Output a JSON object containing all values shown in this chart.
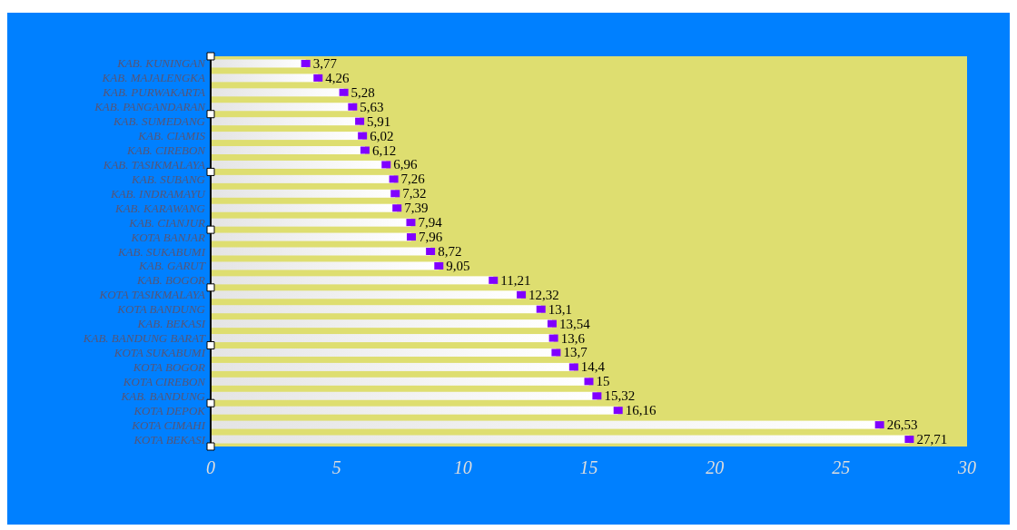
{
  "chart_data": {
    "type": "bar",
    "orientation": "horizontal",
    "categories": [
      "KAB. KUNINGAN",
      "KAB. MAJALENGKA",
      "KAB. PURWAKARTA",
      "KAB. PANGANDARAN",
      "KAB. SUMEDANG",
      "KAB. CIAMIS",
      "KAB. CIREBON",
      "KAB. TASIKMALAYA",
      "KAB. SUBANG",
      "KAB. INDRAMAYU",
      "KAB. KARAWANG",
      "KAB. CIANJUR",
      "KOTA BANJAR",
      "KAB. SUKABUMI",
      "KAB. GARUT",
      "KAB. BOGOR",
      "KOTA TASIKMALAYA",
      "KOTA BANDUNG",
      "KAB. BEKASI",
      "KAB. BANDUNG BARAT",
      "KOTA SUKABUMI",
      "KOTA BOGOR",
      "KOTA CIREBON",
      "KAB. BANDUNG",
      "KOTA DEPOK",
      "KOTA CIMAHI",
      "KOTA BEKASI"
    ],
    "series": [
      {
        "color": "#ffffff",
        "values": [
          3.77,
          4.26,
          5.28,
          5.63,
          5.91,
          6.02,
          6.12,
          6.96,
          7.26,
          7.32,
          7.39,
          7.94,
          7.96,
          8.72,
          9.05,
          11.21,
          12.32,
          13.1,
          13.54,
          13.6,
          13.7,
          14.4,
          15,
          15.32,
          16.16,
          26.53,
          27.71
        ],
        "value_labels": [
          "3,77",
          "4,26",
          "5,28",
          "5,63",
          "5,91",
          "6,02",
          "6,12",
          "6,96",
          "7,26",
          "7,32",
          "7,39",
          "7,94",
          "7,96",
          "8,72",
          "9,05",
          "11,21",
          "12,32",
          "13,1",
          "13,54",
          "13,6",
          "13,7",
          "14,4",
          "15",
          "15,32",
          "16,16",
          "26,53",
          "27,71"
        ]
      },
      {
        "type": "scatter",
        "color": "#8000ff",
        "marker": "square",
        "x": [
          "KAB. KUNINGAN",
          "KAB. MAJALENGKA",
          "KAB. PURWAKARTA",
          "KAB. PANGANDARAN",
          "KAB. SUMEDANG",
          "KAB. CIAMIS",
          "KAB. CIREBON",
          "KAB. TASIKMALAYA",
          "KAB. SUBANG",
          "KAB. INDRAMAYU",
          "KAB. KARAWANG",
          "KAB. CIANJUR",
          "KOTA BANJAR",
          "KAB. SUKABUMI",
          "KAB. GARUT",
          "KAB. BOGOR",
          "KOTA TASIKMALAYA",
          "KOTA BANDUNG",
          "KAB. BEKASI",
          "KAB. BANDUNG BARAT",
          "KOTA SUKABUMI",
          "KOTA BOGOR",
          "KOTA CIREBON",
          "KAB. BANDUNG",
          "KOTA DEPOK",
          "KOTA CIMAHI",
          "KOTA BEKASI"
        ],
        "values": [
          3.77,
          4.26,
          5.28,
          5.63,
          5.91,
          6.02,
          6.12,
          6.96,
          7.26,
          7.32,
          7.39,
          7.94,
          7.96,
          8.72,
          9.05,
          11.21,
          12.32,
          13.1,
          13.54,
          13.6,
          13.7,
          14.4,
          15,
          15.32,
          16.16,
          26.53,
          27.71
        ]
      }
    ],
    "xlim": [
      0,
      30
    ],
    "xticks": [
      0,
      5,
      10,
      15,
      20,
      25,
      30
    ]
  }
}
